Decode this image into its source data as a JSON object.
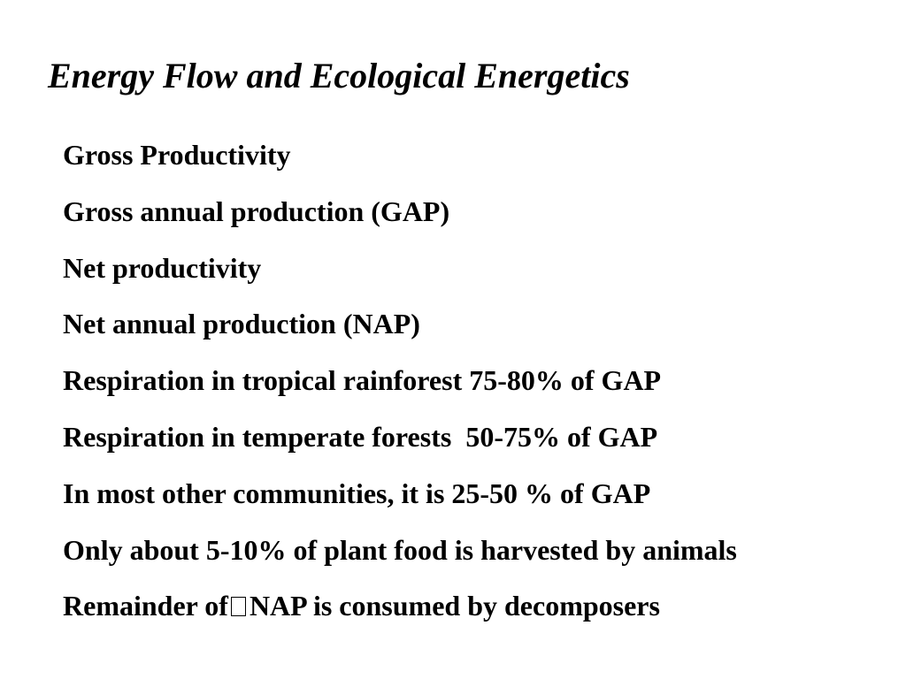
{
  "slide": {
    "title": "Energy Flow and Ecological Energetics",
    "items": [
      "Gross Productivity",
      "Gross annual production (GAP)",
      "Net productivity",
      "Net annual production (NAP)",
      "Respiration in tropical rainforest 75-80% of GAP",
      "Respiration in temperate forests  50-75% of GAP",
      "In most other communities, it is 25-50 % of GAP",
      "Only about 5-10% of plant food is harvested by animals"
    ],
    "last_item": {
      "before": "Remainder of",
      "after": "NAP is consumed by decomposers"
    }
  }
}
